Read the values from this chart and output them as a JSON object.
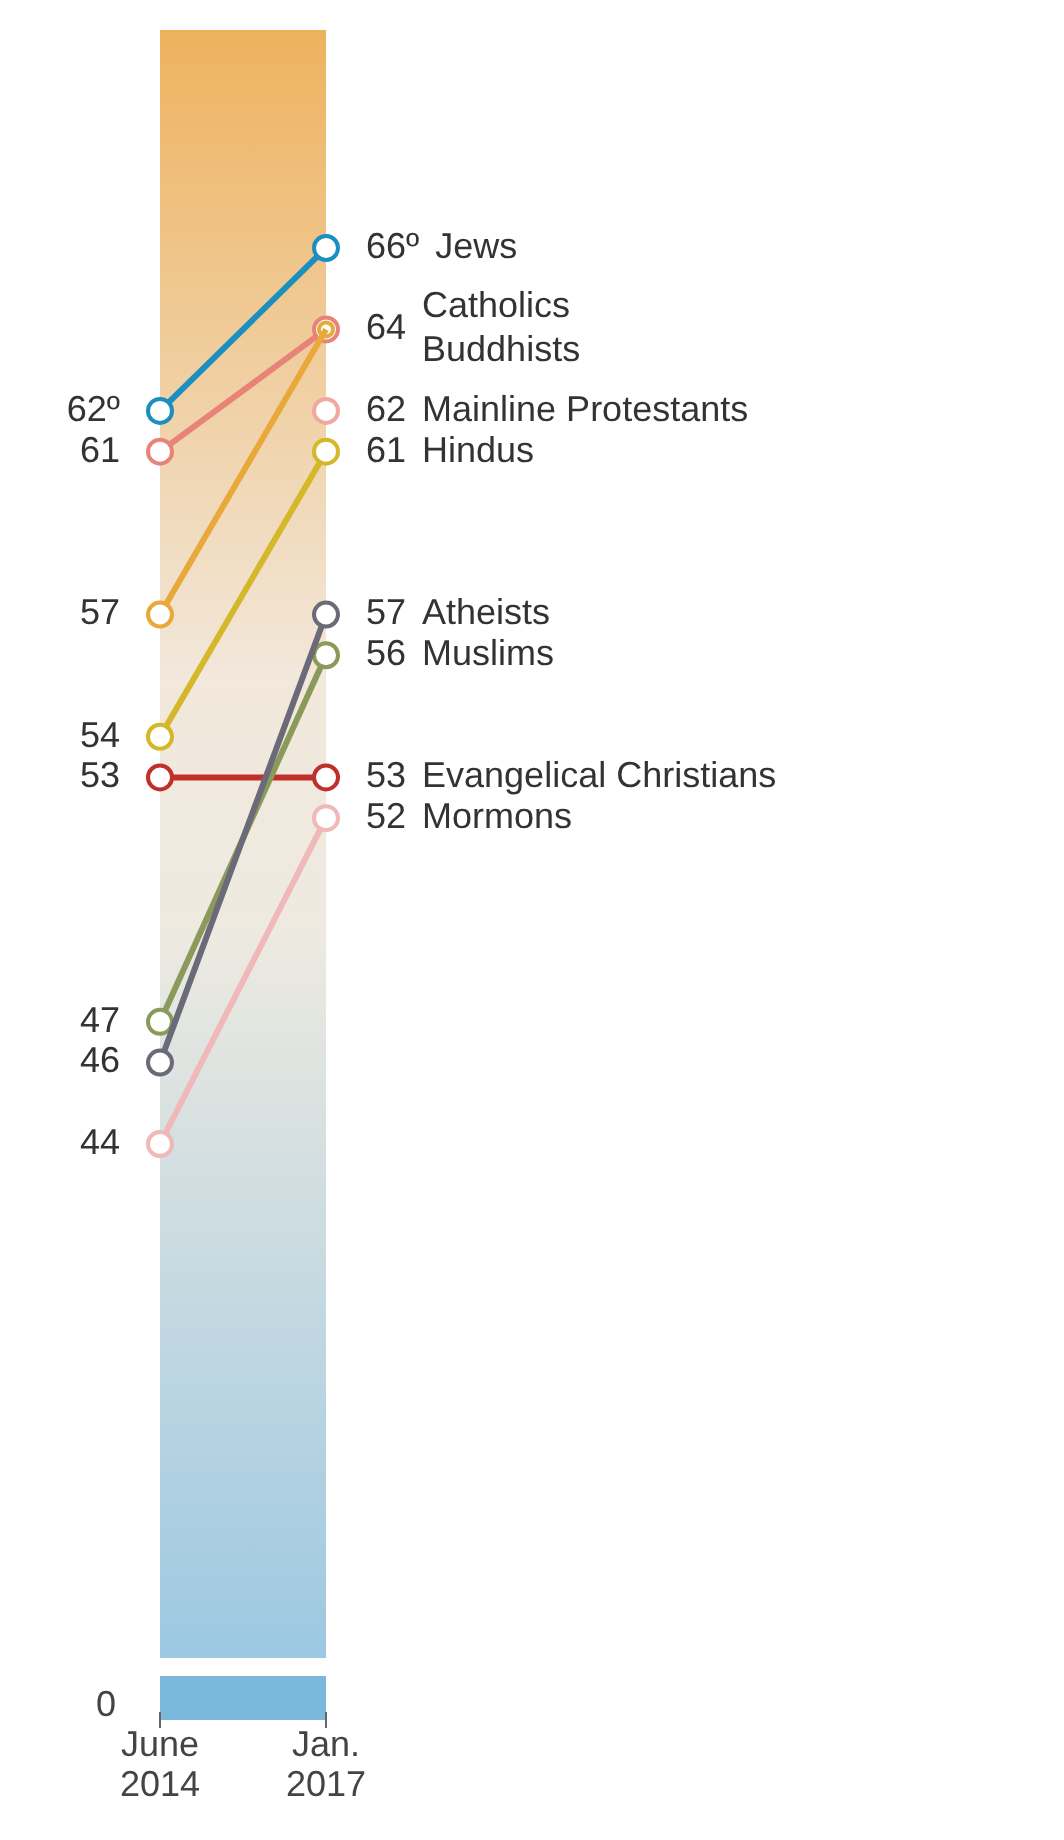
{
  "chart_data": {
    "type": "line",
    "categories": [
      "June 2014",
      "Jan. 2017"
    ],
    "tick_labels": "x",
    "marker": "circle",
    "line_style": "solid",
    "legend": false,
    "series": [
      {
        "name": "Jews",
        "color": "#1a8fc0",
        "values": [
          62,
          66
        ],
        "value_labels": [
          "62º",
          "66º"
        ]
      },
      {
        "name": "Catholics",
        "color": "#e8837a",
        "values": [
          61,
          64
        ],
        "value_labels": [
          "61",
          "64"
        ]
      },
      {
        "name": "Buddhists",
        "color": "#e8a93a",
        "values": [
          57,
          64
        ],
        "value_labels": [
          "57",
          null
        ]
      },
      {
        "name": "Mainline Protestants",
        "color": "#f0a8a0",
        "values": [
          null,
          62
        ],
        "value_labels": [
          null,
          "62"
        ]
      },
      {
        "name": "Hindus",
        "color": "#d4b82a",
        "values": [
          54,
          61
        ],
        "value_labels": [
          "54",
          "61"
        ]
      },
      {
        "name": "Atheists",
        "color": "#6a6a78",
        "values": [
          46,
          57
        ],
        "value_labels": [
          "46",
          "57"
        ]
      },
      {
        "name": "Muslims",
        "color": "#8a9a5a",
        "values": [
          47,
          56
        ],
        "value_labels": [
          "47",
          "56"
        ]
      },
      {
        "name": "Evangelical Christians",
        "color": "#c0302a",
        "values": [
          53,
          53
        ],
        "value_labels": [
          "53",
          "53"
        ]
      },
      {
        "name": "Mormons",
        "color": "#f0b8b8",
        "values": [
          44,
          52
        ],
        "value_labels": [
          "44",
          "52"
        ]
      }
    ],
    "annotations": [
      "0"
    ]
  }
}
